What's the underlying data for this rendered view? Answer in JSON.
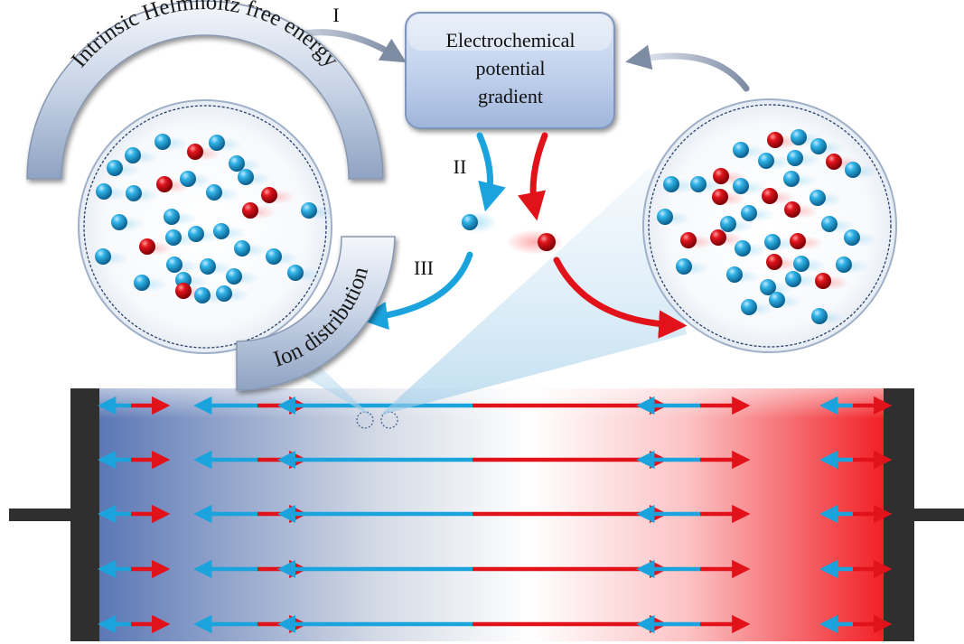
{
  "diagram": {
    "central_box": {
      "lines": [
        "Electrochemical",
        "potential",
        "gradient"
      ]
    },
    "step_labels": {
      "one": "I",
      "two": "II",
      "three": "III"
    },
    "banners": {
      "energy": "Intrinsic Helmholtz free energy",
      "distribution": "Ion distribution"
    },
    "colors": {
      "cation": "#1a9fd9",
      "anion": "#d4101a",
      "left_gradient": "#5a77b5",
      "right_gradient": "#f11f25",
      "electrode": "#2f2f2f",
      "box_fill": "#bfd0ec"
    },
    "ion_species": [
      "cation",
      "anion"
    ],
    "cell": {
      "electrodes": [
        "left-electrode",
        "right-electrode"
      ],
      "rows": 5,
      "arrow_columns": [
        {
          "left": 0.45,
          "right": 0.55
        },
        {
          "left": 0.57,
          "right": 0.43
        },
        {
          "left": 1.0,
          "right": 1.0
        },
        {
          "left": 0.57,
          "right": 0.43
        },
        {
          "left": 0.45,
          "right": 0.55
        }
      ]
    }
  }
}
